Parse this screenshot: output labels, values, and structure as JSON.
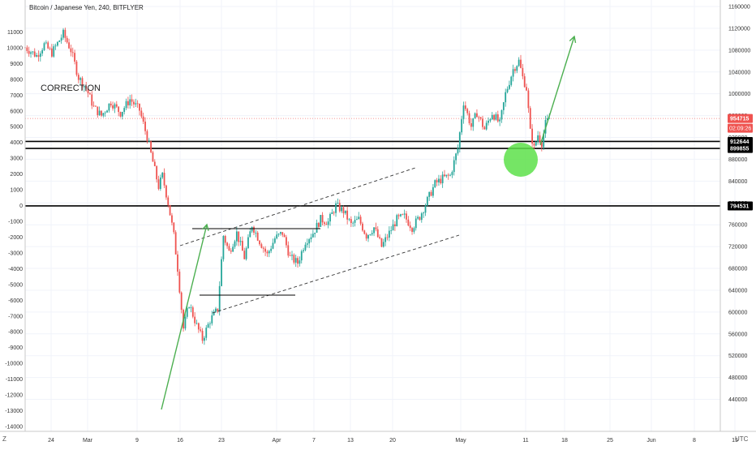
{
  "chart_title": "Bitcoin / Japanese Yen, 240, BITFLYER",
  "annotation_text": "CORRECTION",
  "scale_button": "Z",
  "timezone_label": "UTC",
  "colors": {
    "up": "#26a69a",
    "down": "#ef5350",
    "current_price_bg": "#ef5350",
    "level_label_bg": "#000000",
    "arrow": "#4caf50",
    "circle": "#5de04a",
    "grid": "#f0f3fa"
  },
  "chart_data": {
    "type": "candlestick",
    "title": "Bitcoin / Japanese Yen, 240, BITFLYER",
    "x_ticks": [
      "24",
      "Mar",
      "9",
      "16",
      "23",
      "Apr",
      "7",
      "13",
      "20",
      "May",
      "11",
      "18",
      "25",
      "Jun",
      "8",
      "15"
    ],
    "left_axis": {
      "ylim": [
        -14000,
        12000
      ],
      "ticks": [
        11000,
        10000,
        9000,
        8000,
        7000,
        6000,
        5000,
        4000,
        3000,
        2000,
        1000,
        0,
        -1000,
        -2000,
        -3000,
        -4000,
        -5000,
        -6000,
        -7000,
        -8000,
        -9000,
        -10000,
        -11000,
        -12000,
        -13000,
        -14000
      ]
    },
    "right_axis": {
      "ylim": [
        420000,
        1160000
      ],
      "ticks": [
        1160000,
        1120000,
        1080000,
        1040000,
        1000000,
        960000,
        920000,
        880000,
        840000,
        800000,
        760000,
        720000,
        680000,
        640000,
        600000,
        560000,
        520000,
        480000,
        440000
      ]
    },
    "current_price": {
      "value": 954715,
      "countdown": "02:09:26"
    },
    "horizontal_levels": [
      {
        "value": 912644,
        "label": "912644"
      },
      {
        "value": 899855,
        "label": "899855"
      },
      {
        "value": 794531,
        "label": "794531"
      }
    ],
    "price_path": [
      [
        0,
        1085000
      ],
      [
        6,
        1070000
      ],
      [
        10,
        1090000
      ],
      [
        14,
        1075000
      ],
      [
        20,
        1110000
      ],
      [
        24,
        1080000
      ],
      [
        28,
        1030000
      ],
      [
        32,
        1010000
      ],
      [
        36,
        975000
      ],
      [
        40,
        960000
      ],
      [
        45,
        985000
      ],
      [
        50,
        965000
      ],
      [
        55,
        990000
      ],
      [
        60,
        970000
      ],
      [
        64,
        920000
      ],
      [
        68,
        860000
      ],
      [
        70,
        830000
      ],
      [
        72,
        850000
      ],
      [
        75,
        800000
      ],
      [
        78,
        740000
      ],
      [
        80,
        680000
      ],
      [
        83,
        570000
      ],
      [
        86,
        615000
      ],
      [
        90,
        575000
      ],
      [
        93,
        550000
      ],
      [
        97,
        585000
      ],
      [
        101,
        605000
      ],
      [
        104,
        740000
      ],
      [
        107,
        710000
      ],
      [
        111,
        745000
      ],
      [
        115,
        700000
      ],
      [
        119,
        760000
      ],
      [
        123,
        730000
      ],
      [
        127,
        705000
      ],
      [
        131,
        735000
      ],
      [
        135,
        745000
      ],
      [
        139,
        700000
      ],
      [
        143,
        690000
      ],
      [
        147,
        730000
      ],
      [
        151,
        745000
      ],
      [
        155,
        770000
      ],
      [
        159,
        765000
      ],
      [
        163,
        795000
      ],
      [
        167,
        785000
      ],
      [
        171,
        760000
      ],
      [
        175,
        770000
      ],
      [
        179,
        740000
      ],
      [
        183,
        755000
      ],
      [
        187,
        720000
      ],
      [
        191,
        745000
      ],
      [
        195,
        770000
      ],
      [
        199,
        775000
      ],
      [
        203,
        755000
      ],
      [
        207,
        775000
      ],
      [
        211,
        805000
      ],
      [
        215,
        835000
      ],
      [
        219,
        845000
      ],
      [
        223,
        850000
      ],
      [
        227,
        900000
      ],
      [
        230,
        985000
      ],
      [
        234,
        940000
      ],
      [
        237,
        965000
      ],
      [
        241,
        935000
      ],
      [
        245,
        965000
      ],
      [
        249,
        945000
      ],
      [
        252,
        1000000
      ],
      [
        256,
        1045000
      ],
      [
        259,
        1060000
      ],
      [
        261,
        1030000
      ],
      [
        263,
        1010000
      ],
      [
        265,
        930000
      ],
      [
        267,
        900000
      ],
      [
        269,
        925000
      ],
      [
        271,
        910000
      ],
      [
        273,
        945000
      ],
      [
        275,
        955000
      ]
    ]
  }
}
